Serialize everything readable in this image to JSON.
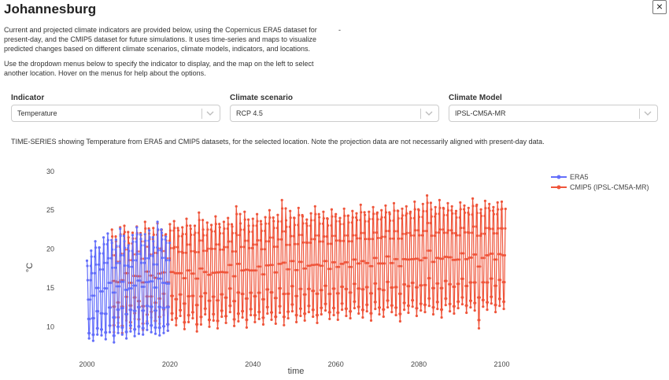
{
  "header": {
    "title": "Johannesburg",
    "close_label": "×"
  },
  "intro": {
    "paragraph1": "Current and projected climate indicators are provided below, using the Copernicus ERA5 dataset for present-day, and the CMIP5 dataset for future simulations. It uses time-series and maps to visualize predicted changes based on different climate scenarios, climate models, indicators, and locations.",
    "dash": "-",
    "paragraph2": "Use the dropdown menus below to specify the indicator to display, and the map on the left to select another location. Hover on the menus for help about the options."
  },
  "dropdowns": [
    {
      "label": "Indicator",
      "value": "Temperature"
    },
    {
      "label": "Climate scenario",
      "value": "RCP 4.5"
    },
    {
      "label": "Climate Model",
      "value": "IPSL-CM5A-MR"
    }
  ],
  "caption": "TIME-SERIES showing Temperature from ERA5 and CMIP5 datasets, for the selected location. Note the projection data are not necessarily aligned with present-day data.",
  "colors": {
    "era5": "#636efa",
    "cmip5": "#ef553b"
  },
  "chart_data": {
    "type": "line",
    "xlabel": "time",
    "ylabel": "°C",
    "xlim": [
      1998,
      2102
    ],
    "ylim": [
      7.5,
      31
    ],
    "x_ticks": [
      2000,
      2020,
      2040,
      2060,
      2080,
      2100
    ],
    "y_ticks": [
      10,
      15,
      20,
      25,
      30
    ],
    "grid": false,
    "legend_position": "top-right",
    "series_sampling": "monthly, seasonal cycle (peak ~Jan, trough ~Jul)",
    "series": [
      {
        "name": "ERA5",
        "color": "#636efa",
        "x_range": [
          2000,
          2020
        ],
        "annual_max": [
          18.5,
          19.8,
          21.0,
          20.2,
          21.5,
          22.0,
          20.8,
          21.2,
          22.6,
          21.0,
          20.5,
          21.8,
          22.8,
          21.3,
          21.9,
          22.4,
          21.0,
          23.5,
          22.1,
          21.6
        ],
        "annual_min": [
          8.5,
          8.2,
          9.0,
          8.9,
          8.4,
          9.3,
          8.0,
          9.2,
          9.0,
          8.5,
          9.4,
          8.8,
          9.1,
          9.0,
          9.6,
          9.3,
          9.1,
          8.9,
          9.2,
          9.5
        ]
      },
      {
        "name": "CMIP5 (IPSL-CM5A-MR)",
        "color": "#ef553b",
        "x_range": [
          2006,
          2100
        ],
        "annual_max": [
          22.5,
          21.0,
          22.8,
          23.0,
          21.5,
          22.1,
          22.9,
          21.8,
          23.5,
          22.0,
          22.7,
          23.3,
          22.5,
          21.9,
          23.2,
          23.6,
          22.4,
          22.8,
          23.9,
          22.6,
          23.0,
          24.7,
          22.5,
          23.4,
          23.1,
          24.2,
          22.8,
          23.5,
          24.0,
          22.9,
          25.5,
          23.3,
          24.8,
          23.0,
          23.9,
          24.5,
          23.2,
          24.1,
          25.0,
          23.6,
          24.4,
          26.3,
          23.7,
          24.9,
          24.0,
          25.3,
          24.2,
          23.8,
          24.6,
          25.5,
          24.1,
          24.8,
          23.9,
          25.1,
          24.5,
          24.0,
          25.2,
          24.3,
          24.9,
          24.6,
          25.7,
          24.4,
          24.8,
          25.4,
          24.7,
          25.0,
          25.6,
          24.5,
          25.9,
          24.9,
          25.2,
          25.5,
          24.8,
          26.1,
          25.0,
          25.8,
          26.9,
          25.1,
          25.4,
          26.3,
          25.2,
          25.9,
          25.5,
          24.9,
          26.0,
          25.6,
          25.3,
          26.5,
          25.7,
          25.1,
          26.2,
          25.8,
          25.4,
          26.0,
          26.1
        ],
        "annual_min": [
          9.3,
          10.5,
          9.2,
          10.8,
          9.8,
          11.0,
          10.1,
          9.6,
          10.7,
          11.2,
          9.9,
          10.4,
          11.5,
          9.5,
          10.9,
          10.2,
          11.4,
          9.7,
          10.6,
          11.1,
          9.4,
          10.3,
          11.6,
          10.0,
          10.8,
          9.8,
          11.3,
          10.5,
          11.9,
          10.1,
          10.7,
          11.2,
          9.9,
          11.5,
          10.6,
          11.0,
          10.3,
          11.7,
          10.9,
          10.4,
          11.8,
          10.2,
          11.1,
          12.0,
          10.6,
          11.4,
          10.8,
          11.9,
          11.3,
          10.5,
          11.6,
          12.1,
          11.0,
          11.5,
          10.9,
          12.2,
          11.4,
          11.1,
          12.4,
          11.7,
          11.2,
          12.0,
          10.8,
          12.3,
          11.6,
          11.3,
          12.5,
          11.9,
          11.5,
          10.7,
          12.2,
          11.8,
          12.6,
          11.4,
          12.1,
          11.9,
          12.7,
          11.6,
          12.3,
          11.2,
          12.8,
          12.0,
          11.7,
          12.4,
          12.9,
          11.8,
          12.5,
          12.1,
          9.8,
          12.6,
          12.2,
          13.0,
          11.9,
          12.7,
          12.3
        ]
      }
    ]
  }
}
